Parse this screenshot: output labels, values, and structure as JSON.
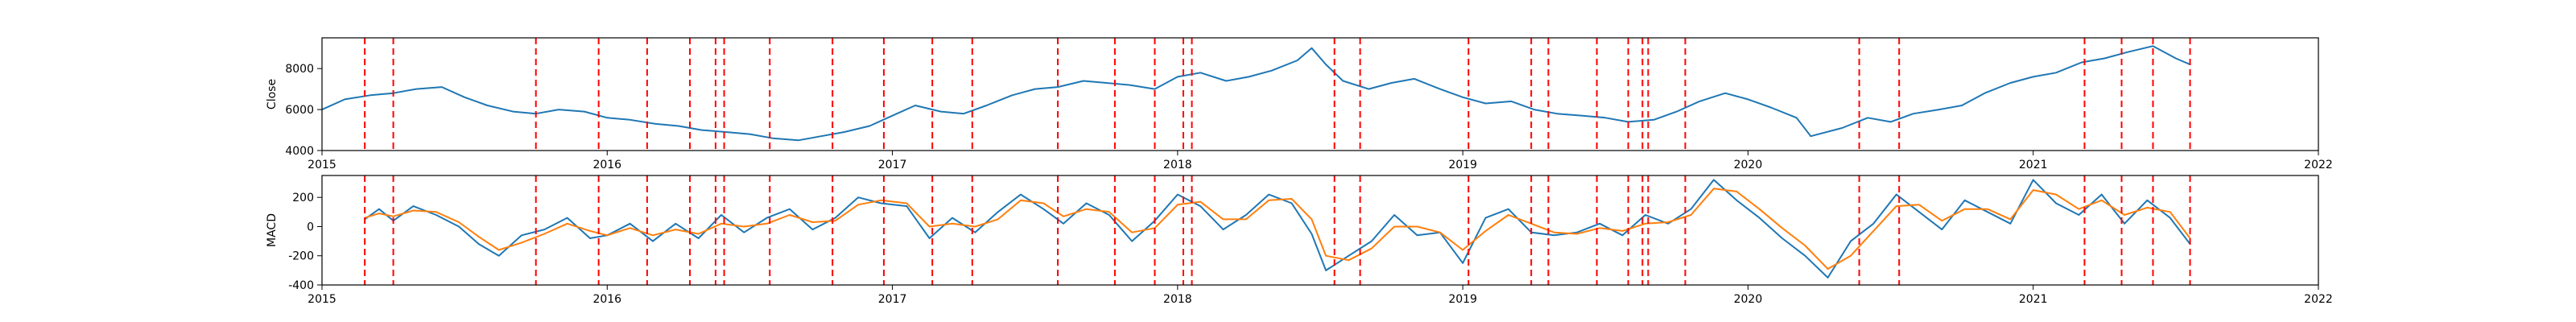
{
  "chart_data": [
    {
      "type": "line",
      "ylabel": "Close",
      "xlim": [
        2015,
        2022
      ],
      "ylim": [
        4000,
        9500
      ],
      "x_ticks": [
        "2015",
        "2016",
        "2017",
        "2018",
        "2019",
        "2020",
        "2021",
        "2022"
      ],
      "y_ticks": [
        4000,
        6000,
        8000
      ],
      "grid": false,
      "series": [
        {
          "color": "#1f77b4",
          "x": [
            2015.0,
            2015.08,
            2015.17,
            2015.25,
            2015.33,
            2015.42,
            2015.5,
            2015.58,
            2015.67,
            2015.75,
            2015.83,
            2015.92,
            2016.0,
            2016.08,
            2016.17,
            2016.25,
            2016.33,
            2016.42,
            2016.5,
            2016.58,
            2016.67,
            2016.75,
            2016.83,
            2016.92,
            2017.0,
            2017.08,
            2017.17,
            2017.25,
            2017.33,
            2017.42,
            2017.5,
            2017.58,
            2017.67,
            2017.75,
            2017.83,
            2017.92,
            2018.0,
            2018.08,
            2018.17,
            2018.25,
            2018.33,
            2018.42,
            2018.47,
            2018.52,
            2018.58,
            2018.67,
            2018.75,
            2018.83,
            2018.92,
            2019.0,
            2019.08,
            2019.17,
            2019.25,
            2019.33,
            2019.42,
            2019.5,
            2019.58,
            2019.67,
            2019.75,
            2019.83,
            2019.92,
            2020.0,
            2020.08,
            2020.17,
            2020.22,
            2020.33,
            2020.42,
            2020.5,
            2020.58,
            2020.67,
            2020.75,
            2020.83,
            2020.92,
            2021.0,
            2021.08,
            2021.17,
            2021.25,
            2021.33,
            2021.42,
            2021.5,
            2021.55
          ],
          "y": [
            6000,
            6500,
            6700,
            6800,
            7000,
            7100,
            6600,
            6200,
            5900,
            5800,
            6000,
            5900,
            5600,
            5500,
            5300,
            5200,
            5000,
            4900,
            4800,
            4600,
            4500,
            4700,
            4900,
            5200,
            5700,
            6200,
            5900,
            5800,
            6200,
            6700,
            7000,
            7100,
            7400,
            7300,
            7200,
            7000,
            7600,
            7800,
            7400,
            7600,
            7900,
            8400,
            9000,
            8200,
            7400,
            7000,
            7300,
            7500,
            7000,
            6600,
            6300,
            6400,
            6000,
            5800,
            5700,
            5600,
            5400,
            5500,
            5900,
            6400,
            6800,
            6500,
            6100,
            5600,
            4700,
            5100,
            5600,
            5400,
            5800,
            6000,
            6200,
            6800,
            7300,
            7600,
            7800,
            8300,
            8500,
            8800,
            9100,
            8500,
            8200
          ]
        }
      ],
      "vlines": [
        2015.15,
        2015.25,
        2015.75,
        2015.97,
        2016.14,
        2016.29,
        2016.38,
        2016.41,
        2016.57,
        2016.79,
        2016.97,
        2017.14,
        2017.28,
        2017.58,
        2017.78,
        2017.92,
        2018.02,
        2018.05,
        2018.55,
        2018.64,
        2019.02,
        2019.24,
        2019.3,
        2019.47,
        2019.58,
        2019.63,
        2019.65,
        2019.78,
        2020.39,
        2020.53,
        2021.18,
        2021.31,
        2021.42,
        2021.55
      ],
      "vline_color": "#ff0000"
    },
    {
      "type": "line",
      "ylabel": "MACD",
      "xlim": [
        2015,
        2022
      ],
      "ylim": [
        -400,
        350
      ],
      "x_ticks": [
        "2015",
        "2016",
        "2017",
        "2018",
        "2019",
        "2020",
        "2021",
        "2022"
      ],
      "y_ticks": [
        -400,
        -200,
        0,
        200
      ],
      "grid": false,
      "series": [
        {
          "color": "#1f77b4",
          "x": [
            2015.15,
            2015.2,
            2015.25,
            2015.32,
            2015.4,
            2015.48,
            2015.55,
            2015.62,
            2015.7,
            2015.78,
            2015.86,
            2015.94,
            2016.0,
            2016.08,
            2016.16,
            2016.24,
            2016.32,
            2016.4,
            2016.48,
            2016.56,
            2016.64,
            2016.72,
            2016.8,
            2016.88,
            2016.96,
            2017.05,
            2017.13,
            2017.21,
            2017.29,
            2017.37,
            2017.45,
            2017.53,
            2017.6,
            2017.68,
            2017.76,
            2017.84,
            2017.92,
            2018.0,
            2018.08,
            2018.16,
            2018.24,
            2018.32,
            2018.4,
            2018.47,
            2018.52,
            2018.6,
            2018.68,
            2018.76,
            2018.84,
            2018.92,
            2019.0,
            2019.08,
            2019.16,
            2019.24,
            2019.32,
            2019.4,
            2019.48,
            2019.56,
            2019.64,
            2019.72,
            2019.8,
            2019.88,
            2019.96,
            2020.04,
            2020.12,
            2020.2,
            2020.28,
            2020.36,
            2020.44,
            2020.52,
            2020.6,
            2020.68,
            2020.76,
            2020.84,
            2020.92,
            2021.0,
            2021.08,
            2021.16,
            2021.24,
            2021.32,
            2021.4,
            2021.48,
            2021.55
          ],
          "y": [
            50,
            120,
            40,
            140,
            80,
            0,
            -120,
            -200,
            -60,
            -20,
            60,
            -80,
            -60,
            20,
            -100,
            20,
            -80,
            80,
            -40,
            60,
            120,
            -20,
            60,
            200,
            160,
            140,
            -80,
            60,
            -40,
            100,
            220,
            120,
            20,
            160,
            80,
            -100,
            40,
            220,
            140,
            -20,
            80,
            220,
            160,
            -50,
            -300,
            -200,
            -100,
            80,
            -60,
            -40,
            -250,
            60,
            120,
            -40,
            -60,
            -40,
            20,
            -60,
            80,
            20,
            120,
            320,
            180,
            60,
            -80,
            -200,
            -350,
            -100,
            20,
            220,
            100,
            -20,
            180,
            100,
            20,
            320,
            160,
            80,
            220,
            20,
            180,
            60,
            -120
          ]
        },
        {
          "color": "#ff7f0e",
          "x": [
            2015.15,
            2015.2,
            2015.25,
            2015.32,
            2015.4,
            2015.48,
            2015.55,
            2015.62,
            2015.7,
            2015.78,
            2015.86,
            2015.94,
            2016.0,
            2016.08,
            2016.16,
            2016.24,
            2016.32,
            2016.4,
            2016.48,
            2016.56,
            2016.64,
            2016.72,
            2016.8,
            2016.88,
            2016.96,
            2017.05,
            2017.13,
            2017.21,
            2017.29,
            2017.37,
            2017.45,
            2017.53,
            2017.6,
            2017.68,
            2017.76,
            2017.84,
            2017.92,
            2018.0,
            2018.08,
            2018.16,
            2018.24,
            2018.32,
            2018.4,
            2018.47,
            2018.52,
            2018.6,
            2018.68,
            2018.76,
            2018.84,
            2018.92,
            2019.0,
            2019.08,
            2019.16,
            2019.24,
            2019.32,
            2019.4,
            2019.48,
            2019.56,
            2019.64,
            2019.72,
            2019.8,
            2019.88,
            2019.96,
            2020.04,
            2020.12,
            2020.2,
            2020.28,
            2020.36,
            2020.44,
            2020.52,
            2020.6,
            2020.68,
            2020.76,
            2020.84,
            2020.92,
            2021.0,
            2021.08,
            2021.16,
            2021.24,
            2021.32,
            2021.4,
            2021.48,
            2021.55
          ],
          "y": [
            60,
            90,
            70,
            110,
            100,
            30,
            -70,
            -160,
            -110,
            -50,
            20,
            -30,
            -60,
            -10,
            -60,
            -20,
            -50,
            20,
            0,
            20,
            80,
            30,
            40,
            150,
            180,
            160,
            0,
            20,
            0,
            50,
            180,
            160,
            70,
            120,
            100,
            -40,
            -10,
            150,
            170,
            50,
            50,
            180,
            190,
            50,
            -200,
            -230,
            -150,
            0,
            0,
            -40,
            -160,
            -30,
            80,
            20,
            -40,
            -50,
            -10,
            -30,
            20,
            30,
            80,
            260,
            240,
            120,
            -10,
            -130,
            -290,
            -200,
            -30,
            140,
            150,
            40,
            120,
            120,
            50,
            250,
            220,
            120,
            180,
            80,
            130,
            100,
            -80
          ]
        }
      ],
      "vlines": [
        2015.15,
        2015.25,
        2015.75,
        2015.97,
        2016.14,
        2016.29,
        2016.38,
        2016.41,
        2016.57,
        2016.79,
        2016.97,
        2017.14,
        2017.28,
        2017.58,
        2017.78,
        2017.92,
        2018.02,
        2018.05,
        2018.55,
        2018.64,
        2019.02,
        2019.24,
        2019.3,
        2019.47,
        2019.58,
        2019.63,
        2019.65,
        2019.78,
        2020.39,
        2020.53,
        2021.18,
        2021.31,
        2021.42,
        2021.55
      ],
      "vline_color": "#ff0000"
    }
  ]
}
